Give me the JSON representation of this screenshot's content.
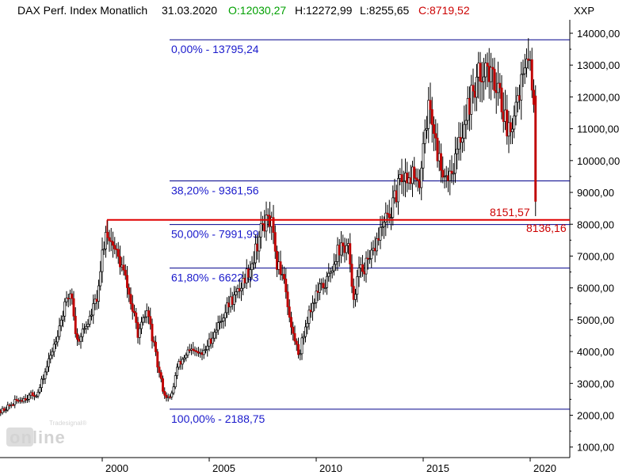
{
  "header": {
    "title": "DAX Perf. Index Monatlich",
    "date": "31.03.2020",
    "open": "O:12030,27",
    "high": "H:12272,99",
    "low": "L:8255,65",
    "close": "C:8719,52"
  },
  "axis_unit": "XXP",
  "watermark": {
    "brand": "online",
    "sub": "Tradesignal®"
  },
  "colors": {
    "up": "#ffffff",
    "down": "#c00000",
    "outline": "#000000",
    "fib_line": "#00008b",
    "fib_text": "#1a1acc",
    "support_line": "#e00000",
    "open_green": "#00a000",
    "close_red": "#cc0000"
  },
  "chart_data": {
    "type": "candlestick",
    "interval": "monthly",
    "ylim": [
      800,
      14400
    ],
    "xlim": [
      1995.0,
      2021.5
    ],
    "y_ticks": [
      {
        "v": 1000,
        "label": "1000,00"
      },
      {
        "v": 2000,
        "label": "2000,00"
      },
      {
        "v": 3000,
        "label": "3000,00"
      },
      {
        "v": 4000,
        "label": "4000,00"
      },
      {
        "v": 5000,
        "label": "5000,00"
      },
      {
        "v": 6000,
        "label": "6000,00"
      },
      {
        "v": 7000,
        "label": "7000,00"
      },
      {
        "v": 8000,
        "label": "8000,00"
      },
      {
        "v": 9000,
        "label": "9000,00"
      },
      {
        "v": 10000,
        "label": "10000,00"
      },
      {
        "v": 11000,
        "label": "11000,00"
      },
      {
        "v": 12000,
        "label": "12000,00"
      },
      {
        "v": 13000,
        "label": "13000,00"
      },
      {
        "v": 14000,
        "label": "14000,00"
      }
    ],
    "x_ticks": [
      {
        "v": 2000,
        "label": "2000"
      },
      {
        "v": 2005,
        "label": "2005"
      },
      {
        "v": 2010,
        "label": "2010"
      },
      {
        "v": 2015,
        "label": "2015"
      },
      {
        "v": 2020,
        "label": "2020"
      }
    ],
    "fib_levels": [
      {
        "pct": "0,00%",
        "value": 13795.24,
        "label": "0,00% - 13795,24"
      },
      {
        "pct": "38,20%",
        "value": 9361.56,
        "label": "38,20% - 9361,56"
      },
      {
        "pct": "50,00%",
        "value": 7991.99,
        "label": "50,00% - 7991,99"
      },
      {
        "pct": "61,80%",
        "value": 6622.43,
        "label": "61,80% - 6622,43"
      },
      {
        "pct": "100,00%",
        "value": 2188.75,
        "label": "100,00% - 2188,75"
      }
    ],
    "support_line": {
      "value": 8136.16,
      "label": "8136,16",
      "from_x": 2000.0,
      "marked_low": {
        "value": 8151.57,
        "label": "8151,57"
      }
    },
    "anchors": [
      [
        1995.0,
        2000
      ],
      [
        1996.0,
        2450
      ],
      [
        1997.0,
        2700
      ],
      [
        1997.6,
        3900
      ],
      [
        1998.25,
        5400
      ],
      [
        1998.55,
        5950
      ],
      [
        1998.8,
        4300
      ],
      [
        1999.4,
        5000
      ],
      [
        1999.85,
        5900
      ],
      [
        2000.0,
        7100
      ],
      [
        2000.2,
        7850
      ],
      [
        2000.6,
        7200
      ],
      [
        2001.0,
        6500
      ],
      [
        2001.7,
        4500
      ],
      [
        2002.1,
        5300
      ],
      [
        2002.6,
        3500
      ],
      [
        2002.9,
        2650
      ],
      [
        2003.2,
        2500
      ],
      [
        2003.5,
        3500
      ],
      [
        2004.0,
        4000
      ],
      [
        2004.7,
        3900
      ],
      [
        2005.0,
        4300
      ],
      [
        2006.0,
        5600
      ],
      [
        2006.3,
        5800
      ],
      [
        2007.0,
        6800
      ],
      [
        2007.5,
        8000
      ],
      [
        2007.8,
        8100
      ],
      [
        2007.95,
        7900
      ],
      [
        2008.1,
        6800
      ],
      [
        2008.5,
        6400
      ],
      [
        2008.8,
        4800
      ],
      [
        2009.2,
        3900
      ],
      [
        2009.6,
        5100
      ],
      [
        2010.0,
        5800
      ],
      [
        2010.5,
        6200
      ],
      [
        2011.0,
        7200
      ],
      [
        2011.5,
        7300
      ],
      [
        2011.7,
        5600
      ],
      [
        2012.0,
        6500
      ],
      [
        2012.5,
        6800
      ],
      [
        2013.0,
        7800
      ],
      [
        2013.5,
        8400
      ],
      [
        2014.0,
        9500
      ],
      [
        2014.5,
        9600
      ],
      [
        2014.8,
        9000
      ],
      [
        2015.0,
        10700
      ],
      [
        2015.3,
        11800
      ],
      [
        2015.7,
        10100
      ],
      [
        2016.1,
        9500
      ],
      [
        2016.5,
        10000
      ],
      [
        2017.0,
        11500
      ],
      [
        2017.5,
        12500
      ],
      [
        2017.9,
        13100
      ],
      [
        2018.1,
        12600
      ],
      [
        2018.5,
        12500
      ],
      [
        2018.9,
        11000
      ],
      [
        2019.1,
        11200
      ],
      [
        2019.5,
        12300
      ],
      [
        2019.8,
        12800
      ],
      [
        2020.0,
        13300
      ],
      [
        2020.15,
        12000
      ],
      [
        2020.25,
        8720
      ]
    ]
  }
}
